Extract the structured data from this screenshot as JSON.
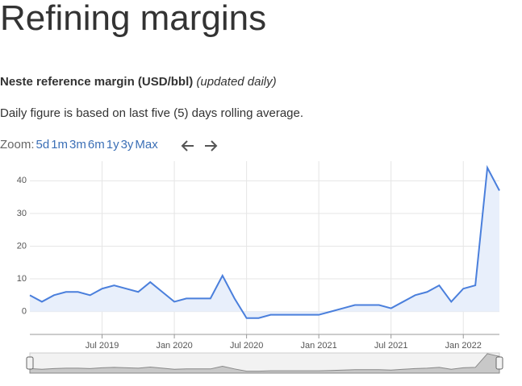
{
  "header": {
    "title": "Refining margins",
    "subtitle": "Neste reference margin (USD/bbl)",
    "note": "(updated daily)",
    "description": "Daily figure is based on last five (5) days rolling average."
  },
  "zoom": {
    "label": "Zoom:",
    "buttons": [
      "5d",
      "1m",
      "3m",
      "6m",
      "1y",
      "3y",
      "Max"
    ]
  },
  "chart_data": {
    "type": "line",
    "color": "#4a7fdc",
    "x": [
      "2019-01",
      "2019-02",
      "2019-03",
      "2019-04",
      "2019-05",
      "2019-06",
      "2019-07",
      "2019-08",
      "2019-09",
      "2019-10",
      "2019-11",
      "2019-12",
      "2020-01",
      "2020-02",
      "2020-03",
      "2020-04",
      "2020-05",
      "2020-06",
      "2020-07",
      "2020-08",
      "2020-09",
      "2020-10",
      "2020-11",
      "2020-12",
      "2021-01",
      "2021-02",
      "2021-03",
      "2021-04",
      "2021-05",
      "2021-06",
      "2021-07",
      "2021-08",
      "2021-09",
      "2021-10",
      "2021-11",
      "2021-12",
      "2022-01",
      "2022-02",
      "2022-03",
      "2022-04"
    ],
    "values": [
      5,
      3,
      5,
      6,
      6,
      5,
      7,
      8,
      7,
      6,
      9,
      6,
      3,
      4,
      4,
      4,
      11,
      4,
      -2,
      -2,
      -1,
      -1,
      -1,
      -1,
      -1,
      0,
      1,
      2,
      2,
      2,
      1,
      3,
      5,
      6,
      8,
      3,
      7,
      8,
      44,
      37
    ],
    "xlim": [
      "2019-01",
      "2022-04"
    ],
    "xticks": [
      {
        "value": "2019-07",
        "label": "Jul 2019"
      },
      {
        "value": "2020-01",
        "label": "Jan 2020"
      },
      {
        "value": "2020-07",
        "label": "Jul 2020"
      },
      {
        "value": "2021-01",
        "label": "Jan 2021"
      },
      {
        "value": "2021-07",
        "label": "Jul 2021"
      },
      {
        "value": "2022-01",
        "label": "Jan 2022"
      }
    ],
    "ylim": [
      -7,
      46
    ],
    "yticks": [
      0,
      10,
      20,
      30,
      40
    ],
    "grid": true
  }
}
